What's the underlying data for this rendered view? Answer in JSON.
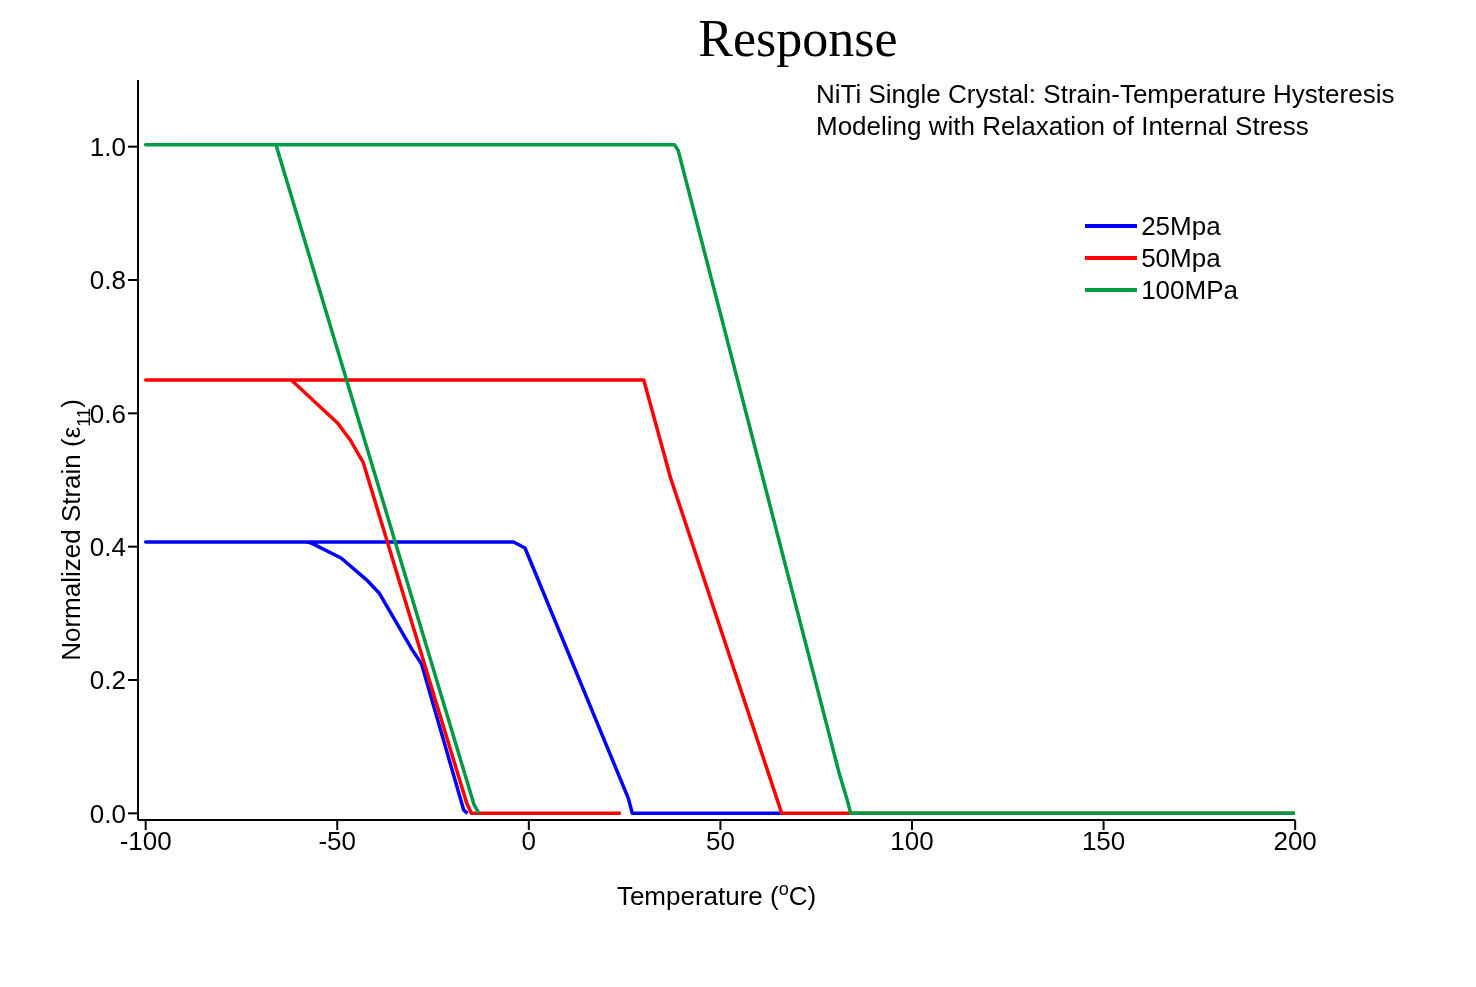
{
  "chart_data": {
    "type": "line",
    "title": "Response",
    "annotations": [
      "NiTi Single Crystal: Strain-Temperature Hysteresis\nModeling with Relaxation of Internal Stress"
    ],
    "xlabel": "Temperature ($^{o}$C)",
    "ylabel": "Normalized Strain (ε$_{11}$)",
    "xlim": [
      -102,
      200
    ],
    "xticks": [
      -100,
      -50,
      0,
      50,
      100,
      150,
      200
    ],
    "ylim": [
      -0.01,
      1.1
    ],
    "yticks": [
      {
        "value": 0,
        "label": "0.0"
      },
      0.2,
      0.4,
      0.6,
      0.8,
      {
        "value": 1,
        "label": "1.0"
      }
    ],
    "grid": false,
    "legend": "top right",
    "marker": "none",
    "line_style": "solid",
    "series": [
      {
        "name": "25Mpa",
        "color": "#0000ff",
        "x": [
          66,
          27,
          26,
          -1,
          -4,
          -100,
          -58,
          -57,
          -49,
          -42.5,
          -39,
          -30.5,
          -28,
          -17,
          -16
        ],
        "values": [
          0,
          0,
          0.022,
          0.398,
          0.407,
          0.407,
          0.407,
          0.406,
          0.383,
          0.351,
          0.33,
          0.246,
          0.224,
          0.005,
          0
        ]
      },
      {
        "name": "50Mpa",
        "color": "#ff0000",
        "x": [
          200,
          66,
          37,
          30,
          -100,
          -62,
          -50,
          -46.6,
          -43.2,
          -16.2,
          -15,
          24
        ],
        "values": [
          0,
          0,
          0.503,
          0.65,
          0.65,
          0.65,
          0.586,
          0.56,
          0.526,
          0.015,
          0,
          0
        ]
      },
      {
        "name": "100MPa",
        "color": "#009944",
        "x": [
          200,
          84,
          83,
          81,
          78,
          39,
          38,
          -100,
          -66,
          -14.3,
          -13
        ],
        "values": [
          0,
          0,
          0.022,
          0.06,
          0.127,
          0.994,
          1.003,
          1.003,
          1.003,
          0.013,
          0
        ]
      }
    ]
  }
}
